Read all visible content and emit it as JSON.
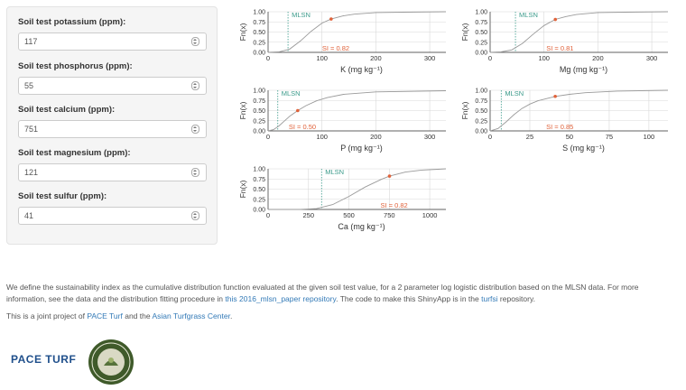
{
  "sidebar": {
    "fields": [
      {
        "label": "Soil test potassium (ppm):",
        "value": "117"
      },
      {
        "label": "Soil test phosphorus (ppm):",
        "value": "55"
      },
      {
        "label": "Soil test calcium (ppm):",
        "value": "751"
      },
      {
        "label": "Soil test magnesium (ppm):",
        "value": "121"
      },
      {
        "label": "Soil test sulfur (ppm):",
        "value": "41"
      }
    ]
  },
  "colors": {
    "curve": "#9a9a9a",
    "mlsn_line": "#3a9a8a",
    "mlsn_text": "#3a9a8a",
    "point": "#e0623a",
    "si_text": "#e0623a",
    "grid": "#d8d8d8"
  },
  "chart_data": [
    {
      "type": "line",
      "element": "K",
      "ylabel": "Fn(x)",
      "xlabel": "K (mg kg⁻¹)",
      "xlim": [
        0,
        330
      ],
      "ylim": [
        0,
        1
      ],
      "xticks": [
        0,
        100,
        200,
        300
      ],
      "yticks": [
        "0.00",
        "0.25",
        "0.50",
        "0.75",
        "1.00"
      ],
      "mlsn_label": "MLSN",
      "mlsn_x": 37,
      "point": {
        "x": 117,
        "y": 0.82
      },
      "si_label": "SI = 0.82",
      "curve": {
        "x": [
          0,
          20,
          40,
          60,
          80,
          100,
          117,
          140,
          160,
          200,
          250,
          330
        ],
        "y": [
          0,
          0.01,
          0.08,
          0.28,
          0.52,
          0.72,
          0.82,
          0.9,
          0.94,
          0.98,
          0.99,
          1.0
        ]
      }
    },
    {
      "type": "line",
      "element": "Mg",
      "ylabel": "Fn(x)",
      "xlabel": "Mg (mg kg⁻¹)",
      "xlim": [
        0,
        330
      ],
      "ylim": [
        0,
        1
      ],
      "xticks": [
        0,
        100,
        200,
        300
      ],
      "yticks": [
        "0.00",
        "0.25",
        "0.50",
        "0.75",
        "1.00"
      ],
      "mlsn_label": "MLSN",
      "mlsn_x": 47,
      "point": {
        "x": 121,
        "y": 0.81
      },
      "si_label": "SI = 0.81",
      "curve": {
        "x": [
          0,
          20,
          40,
          60,
          80,
          100,
          121,
          140,
          160,
          200,
          250,
          330
        ],
        "y": [
          0,
          0.01,
          0.06,
          0.22,
          0.45,
          0.66,
          0.81,
          0.88,
          0.93,
          0.98,
          0.99,
          1.0
        ]
      }
    },
    {
      "type": "line",
      "element": "P",
      "ylabel": "Fn(x)",
      "xlabel": "P (mg kg⁻¹)",
      "xlim": [
        0,
        330
      ],
      "ylim": [
        0,
        1
      ],
      "xticks": [
        0,
        100,
        200,
        300
      ],
      "yticks": [
        "0.00",
        "0.25",
        "0.50",
        "0.75",
        "1.00"
      ],
      "mlsn_label": "MLSN",
      "mlsn_x": 18,
      "point": {
        "x": 55,
        "y": 0.5
      },
      "si_label": "SI = 0.50",
      "curve": {
        "x": [
          0,
          10,
          20,
          30,
          40,
          55,
          70,
          90,
          110,
          140,
          200,
          330
        ],
        "y": [
          0,
          0.03,
          0.12,
          0.24,
          0.36,
          0.5,
          0.62,
          0.74,
          0.82,
          0.9,
          0.96,
          0.99
        ]
      }
    },
    {
      "type": "line",
      "element": "S",
      "ylabel": "Fn(x)",
      "xlabel": "S (mg kg⁻¹)",
      "xlim": [
        0,
        112
      ],
      "ylim": [
        0,
        1
      ],
      "xticks": [
        0,
        25,
        50,
        75,
        100
      ],
      "yticks": [
        "0.00",
        "0.25",
        "0.50",
        "0.75",
        "1.00"
      ],
      "mlsn_label": "MLSN",
      "mlsn_x": 7,
      "point": {
        "x": 41,
        "y": 0.85
      },
      "si_label": "SI = 0.85",
      "curve": {
        "x": [
          0,
          5,
          10,
          15,
          20,
          25,
          30,
          41,
          50,
          60,
          80,
          112
        ],
        "y": [
          0,
          0.06,
          0.22,
          0.4,
          0.55,
          0.66,
          0.74,
          0.85,
          0.9,
          0.94,
          0.98,
          1.0
        ]
      }
    },
    {
      "type": "line",
      "element": "Ca",
      "ylabel": "Fn(x)",
      "xlabel": "Ca (mg kg⁻¹)",
      "xlim": [
        0,
        1100
      ],
      "ylim": [
        0,
        1
      ],
      "xticks": [
        0,
        250,
        500,
        750,
        1000
      ],
      "yticks": [
        "0.00",
        "0.25",
        "0.50",
        "0.75",
        "1.00"
      ],
      "mlsn_label": "MLSN",
      "mlsn_x": 331,
      "point": {
        "x": 751,
        "y": 0.82
      },
      "si_label": "SI = 0.82",
      "curve": {
        "x": [
          0,
          200,
          300,
          400,
          500,
          600,
          700,
          751,
          850,
          950,
          1050,
          1100
        ],
        "y": [
          0,
          0.0,
          0.02,
          0.12,
          0.32,
          0.55,
          0.74,
          0.82,
          0.92,
          0.97,
          0.99,
          1.0
        ]
      }
    }
  ],
  "footer": {
    "desc_part1": "We define the sustainability index as the cumulative distribution function evaluated at the given soil test value, for a 2 parameter log logistic distribution based on the MLSN data. For more information, see the data and the distribution fitting procedure in",
    "desc_link1": "this 2016_mlsn_paper repository",
    "desc_part2": ". The code to make this ShinyApp is in the",
    "desc_link2": "turfsi",
    "desc_part3": "repository.",
    "joint_part1": "This is a joint project of",
    "joint_link1": "PACE Turf",
    "joint_part2": "and the",
    "joint_link2": "Asian Turfgrass Center",
    "joint_part3": ".",
    "logo_text": "PACE TURF"
  }
}
